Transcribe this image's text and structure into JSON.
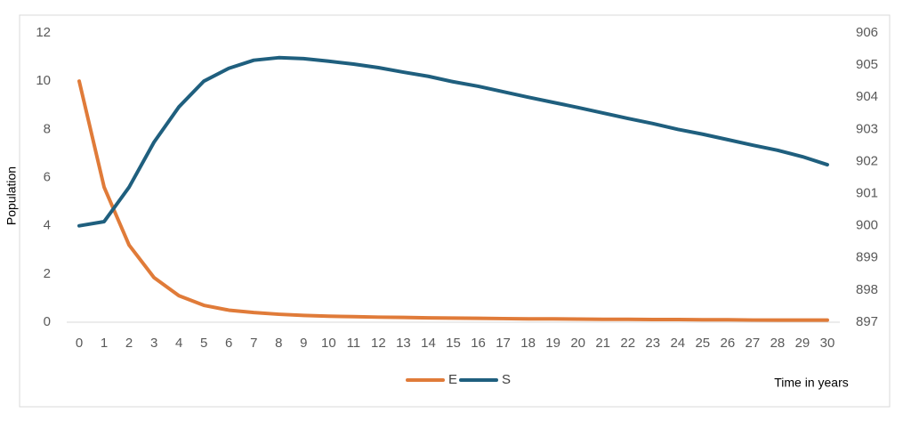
{
  "chart_data": {
    "type": "line",
    "y_label": "Population",
    "x_label": "Time in years",
    "categories": [
      "0",
      "1",
      "2",
      "3",
      "4",
      "5",
      "6",
      "7",
      "8",
      "9",
      "10",
      "11",
      "12",
      "13",
      "14",
      "15",
      "16",
      "17",
      "18",
      "19",
      "20",
      "21",
      "22",
      "23",
      "24",
      "25",
      "26",
      "27",
      "28",
      "29",
      "30"
    ],
    "series": [
      {
        "name": "E",
        "color": "#e07b39",
        "values": [
          10,
          5.6,
          3.2,
          1.85,
          1.1,
          0.7,
          0.5,
          0.4,
          0.33,
          0.28,
          0.25,
          0.23,
          0.21,
          0.2,
          0.18,
          0.17,
          0.16,
          0.15,
          0.14,
          0.14,
          0.13,
          0.12,
          0.12,
          0.11,
          0.11,
          0.1,
          0.1,
          0.09,
          0.09,
          0.09,
          0.09
        ]
      },
      {
        "name": "S",
        "color": "#1f5f7e",
        "axis": "y2",
        "values": [
          900.0,
          900.13,
          901.2,
          902.6,
          903.7,
          904.5,
          904.9,
          905.15,
          905.23,
          905.2,
          905.12,
          905.03,
          904.92,
          904.78,
          904.65,
          904.48,
          904.34,
          904.17,
          904.0,
          903.84,
          903.68,
          903.51,
          903.34,
          903.18,
          903.0,
          902.85,
          902.68,
          902.51,
          902.35,
          902.15,
          901.9
        ]
      }
    ],
    "ylim": [
      0,
      12
    ],
    "yticks": [
      0,
      2,
      4,
      6,
      8,
      10,
      12
    ],
    "y2lim": [
      897,
      906
    ],
    "y2ticks": [
      897,
      898,
      899,
      900,
      901,
      902,
      903,
      904,
      905,
      906
    ],
    "legend": "bottom",
    "grid": false
  }
}
